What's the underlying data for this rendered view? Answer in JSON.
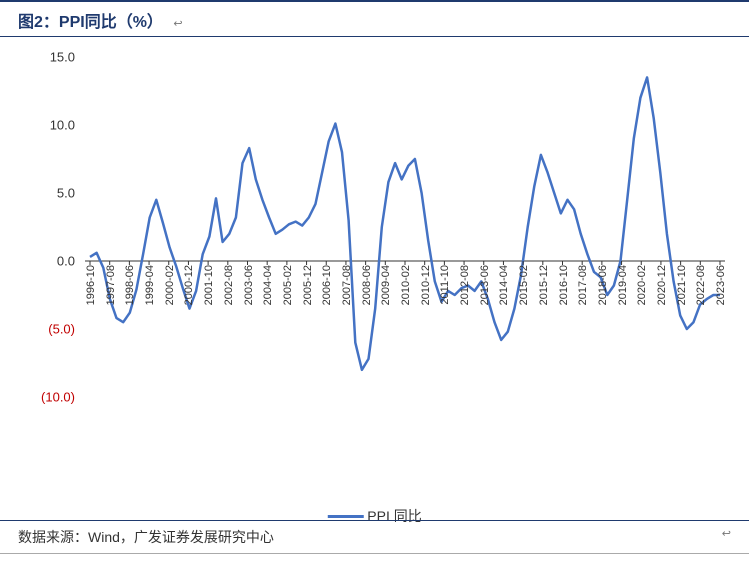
{
  "title": "图2：PPI同比（%）",
  "title_marker": "↩",
  "source_label": "数据来源：Wind，广发证券发展研究中心",
  "source_marker": "↩",
  "legend_label": "PPI 同比",
  "chart": {
    "type": "line",
    "series_name": "PPI 同比",
    "line_color": "#4472c4",
    "line_width": 2.5,
    "background_color": "#ffffff",
    "ylim": [
      -10,
      15
    ],
    "ytick_step": 5,
    "yticks": [
      {
        "v": 15,
        "label": "15.0",
        "neg": false
      },
      {
        "v": 10,
        "label": "10.0",
        "neg": false
      },
      {
        "v": 5,
        "label": "5.0",
        "neg": false
      },
      {
        "v": 0,
        "label": "0.0",
        "neg": false
      },
      {
        "v": -5,
        "label": "(5.0)",
        "neg": true
      },
      {
        "v": -10,
        "label": "(10.0)",
        "neg": true
      }
    ],
    "title_fontsize": 16,
    "label_fontsize": 13,
    "xtick_fontsize": 11,
    "xtick_rotation": -90,
    "axis_color": "#333333",
    "neg_tick_color": "#c00000",
    "x_labels": [
      "1996-10",
      "1997-08",
      "1998-06",
      "1999-04",
      "2000-02",
      "2000-12",
      "2001-10",
      "2002-08",
      "2003-06",
      "2004-04",
      "2005-02",
      "2005-12",
      "2006-10",
      "2007-08",
      "2008-06",
      "2009-04",
      "2010-02",
      "2010-12",
      "2011-10",
      "2012-08",
      "2013-06",
      "2014-04",
      "2015-02",
      "2015-12",
      "2016-10",
      "2017-08",
      "2018-06",
      "2019-04",
      "2020-02",
      "2020-12",
      "2021-10",
      "2022-08",
      "2023-06"
    ],
    "values": [
      0.3,
      0.6,
      -0.5,
      -2.8,
      -4.2,
      -4.5,
      -3.8,
      -2.1,
      0.5,
      3.2,
      4.5,
      2.8,
      1.0,
      -0.4,
      -2.0,
      -3.5,
      -2.2,
      0.5,
      1.8,
      4.6,
      1.4,
      2.0,
      3.2,
      7.2,
      8.3,
      6.0,
      4.5,
      3.2,
      2.0,
      2.3,
      2.7,
      2.9,
      2.6,
      3.2,
      4.2,
      6.5,
      8.8,
      10.1,
      8.0,
      3.0,
      -6.0,
      -8.0,
      -7.2,
      -3.5,
      2.5,
      5.8,
      7.2,
      6.0,
      7.0,
      7.5,
      5.0,
      1.5,
      -1.5,
      -3.0,
      -2.2,
      -2.5,
      -2.0,
      -1.8,
      -2.2,
      -1.5,
      -2.8,
      -4.5,
      -5.8,
      -5.2,
      -3.5,
      -1.0,
      2.5,
      5.5,
      7.8,
      6.5,
      5.0,
      3.5,
      4.5,
      3.8,
      2.0,
      0.5,
      -0.8,
      -1.2,
      -2.5,
      -1.8,
      0.0,
      4.5,
      9.0,
      12.0,
      13.5,
      10.5,
      6.5,
      2.0,
      -1.5,
      -4.0,
      -5.0,
      -4.5,
      -3.2,
      -2.8,
      -2.5,
      -2.5
    ]
  }
}
